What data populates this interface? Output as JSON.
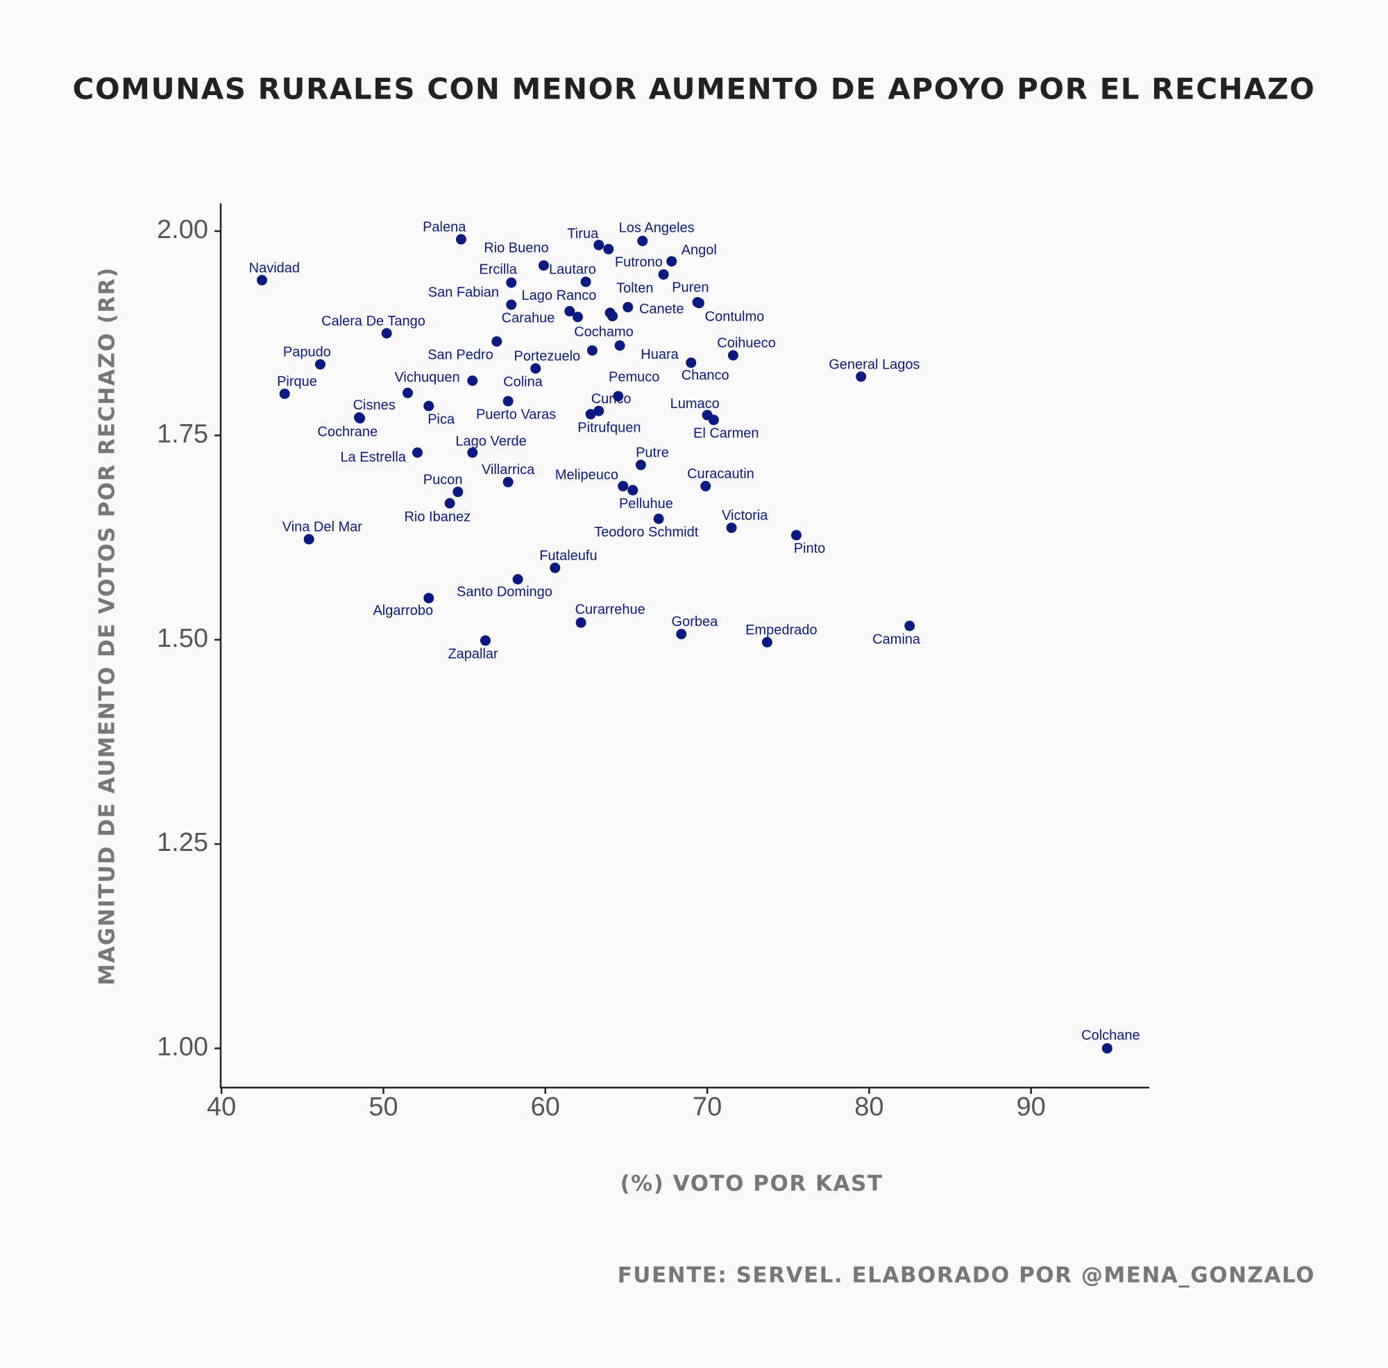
{
  "chart_data": {
    "type": "scatter",
    "title": "COMUNAS RURALES CON MENOR AUMENTO DE APOYO POR EL RECHAZO",
    "x_label": "(%) VOTO POR KAST",
    "y_label": "MAGNITUD DE AUMENTO DE VOTOS POR RECHAZO (RR)",
    "caption": "FUENTE: SERVEL. ELABORADO POR @MENA_GONZALO",
    "color": "#0b1a80",
    "xlim": [
      39.95,
      97.3
    ],
    "ylim": [
      0.952,
      2.034
    ],
    "xticks": [
      40,
      50,
      60,
      70,
      80,
      90
    ],
    "yticks": [
      {
        "value": 1,
        "label": "1.00"
      },
      {
        "value": 1.25,
        "label": "1.25"
      },
      {
        "value": 1.5,
        "label": "1.50"
      },
      {
        "value": 1.75,
        "label": "1.75"
      },
      {
        "value": 2,
        "label": "2.00"
      }
    ],
    "labels": [
      "Navidad",
      "Palena",
      "Rio Bueno",
      "Tirua",
      null,
      "Los Angeles",
      "Angol",
      "Futrono",
      "Ercilla",
      "Lautaro",
      "San Fabian",
      "Lago Ranco",
      "Carahue",
      "Tolten",
      null,
      "Canete",
      "Puren",
      "Contulmo",
      "Calera De Tango",
      "San Pedro",
      "Cochamo",
      "Huara",
      "Portezuelo",
      "Chanco",
      "Coihueco",
      "General Lagos",
      "Papudo",
      "Pirque",
      "Vichuquen",
      "Colina",
      "Puerto Varas",
      "Cisnes",
      "Cochrane",
      "Pica",
      "Pemuco",
      "Curico",
      "Pitrufquen",
      "Lumaco",
      "El Carmen",
      "La Estrella",
      "Lago Verde",
      "Putre",
      "Villarrica",
      "Pucon",
      "Melipeuco",
      "Pelluhue",
      "Curacautin",
      "Rio Ibanez",
      "Teodoro Schmidt",
      "Victoria",
      "Pinto",
      "Vina Del Mar",
      "Futaleufu",
      "Santo Domingo",
      "Algarrobo",
      "Curarrehue",
      "Gorbea",
      "Zapallar",
      "Empedrado",
      "Camina",
      "Colchane"
    ],
    "x": [
      42.5,
      54.8,
      59.9,
      63.3,
      63.9,
      66.0,
      67.8,
      67.3,
      57.9,
      62.5,
      57.9,
      61.5,
      62.0,
      64.0,
      64.15,
      65.1,
      69.4,
      69.5,
      50.2,
      57.0,
      62.9,
      64.6,
      59.4,
      69.0,
      71.6,
      79.5,
      46.1,
      43.9,
      51.5,
      55.5,
      57.7,
      48.5,
      48.55,
      52.8,
      64.5,
      63.3,
      62.8,
      70.0,
      70.4,
      52.1,
      55.5,
      65.9,
      57.7,
      54.6,
      64.8,
      65.4,
      69.9,
      54.1,
      67.0,
      71.5,
      75.5,
      45.4,
      60.6,
      58.3,
      52.8,
      62.2,
      68.4,
      56.3,
      73.7,
      82.5,
      94.7
    ],
    "values": [
      1.94,
      1.99,
      1.958,
      1.983,
      1.978,
      1.988,
      1.963,
      1.947,
      1.937,
      1.938,
      1.91,
      1.902,
      1.895,
      1.9,
      1.896,
      1.907,
      1.913,
      1.912,
      1.875,
      1.865,
      1.854,
      1.86,
      1.832,
      1.839,
      1.848,
      1.822,
      1.837,
      1.801,
      1.802,
      1.817,
      1.792,
      1.772,
      1.771,
      1.786,
      1.798,
      1.78,
      1.776,
      1.775,
      1.769,
      1.729,
      1.729,
      1.714,
      1.693,
      1.681,
      1.688,
      1.683,
      1.688,
      1.667,
      1.648,
      1.637,
      1.628,
      1.623,
      1.588,
      1.574,
      1.551,
      1.521,
      1.507,
      1.499,
      1.497,
      1.517,
      1.0
    ]
  }
}
